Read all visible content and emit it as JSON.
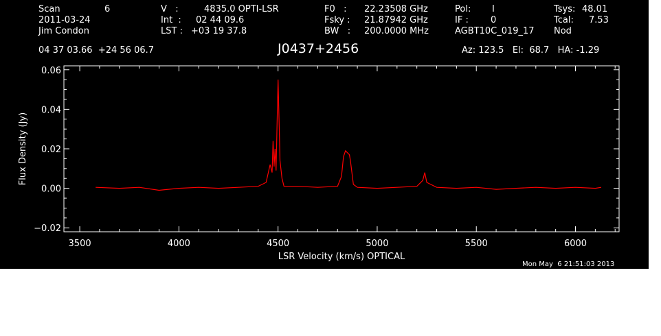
{
  "header": {
    "scan_label": "Scan",
    "scan_number": "6",
    "date": "2011-03-24",
    "observer": "Jim Condon",
    "v_label": "V   :",
    "v_value": "4835.0 OPTI-LSR",
    "int_label": "Int  :",
    "int_value": "02 44 09.6",
    "lst_label": "LST :",
    "lst_value": "+03 19 37.8",
    "f0_label": "F0   :",
    "f0_value": "22.23508 GHz",
    "fsky_label": "Fsky :",
    "fsky_value": "21.87942 GHz",
    "bw_label": "BW   :",
    "bw_value": "200.0000 MHz",
    "pol_label": "Pol:",
    "pol_value": "I",
    "if_label": "IF :",
    "if_value": "0",
    "project": "AGBT10C_019_17",
    "tsys_label": "Tsys:",
    "tsys_value": "48.01",
    "tcal_label": "Tcal:",
    "tcal_value": "7.53",
    "proc": "Nod",
    "coords": "04 37 03.66  +24 56 06.7",
    "source": "J0437+2456",
    "az_el_ha": "Az: 123.5   El:  68.7   HA: -1.29"
  },
  "timestamp": "Mon May  6 21:51:03 2013",
  "chart_data": {
    "type": "line",
    "xlabel": "LSR Velocity (km/s) OPTICAL",
    "ylabel": "Flux Density (Jy)",
    "xlim": [
      3420,
      6220
    ],
    "ylim": [
      -0.022,
      0.062
    ],
    "x_ticks": [
      3500,
      4000,
      4500,
      5000,
      5500,
      6000
    ],
    "x_tick_labels": [
      "3500",
      "4000",
      "4500",
      "5000",
      "5500",
      "6000"
    ],
    "y_ticks": [
      -0.02,
      0.0,
      0.02,
      0.04,
      0.06
    ],
    "y_tick_labels": [
      "−0.02",
      "0.00",
      "0.02",
      "0.04",
      "0.06"
    ],
    "series": [
      {
        "color": "#ff0000",
        "x": [
          3580,
          3700,
          3800,
          3900,
          4000,
          4100,
          4200,
          4300,
          4400,
          4440,
          4460,
          4470,
          4475,
          4480,
          4485,
          4490,
          4495,
          4500,
          4505,
          4510,
          4520,
          4530,
          4600,
          4700,
          4800,
          4820,
          4830,
          4840,
          4850,
          4860,
          4865,
          4880,
          4900,
          5000,
          5100,
          5200,
          5230,
          5240,
          5250,
          5300,
          5400,
          5500,
          5600,
          5700,
          5800,
          5900,
          6000,
          6100,
          6130
        ],
        "y": [
          0.0005,
          0.0,
          0.0005,
          -0.001,
          0.0,
          0.0005,
          0.0,
          0.0005,
          0.001,
          0.003,
          0.012,
          0.008,
          0.024,
          0.011,
          0.02,
          0.009,
          0.032,
          0.055,
          0.035,
          0.014,
          0.005,
          0.001,
          0.001,
          0.0005,
          0.001,
          0.006,
          0.016,
          0.019,
          0.018,
          0.017,
          0.014,
          0.002,
          0.0005,
          0.0,
          0.0005,
          0.001,
          0.004,
          0.008,
          0.003,
          0.0005,
          0.0,
          0.0005,
          -0.0005,
          0.0,
          0.0005,
          0.0,
          0.0005,
          0.0,
          0.0005
        ]
      }
    ]
  }
}
